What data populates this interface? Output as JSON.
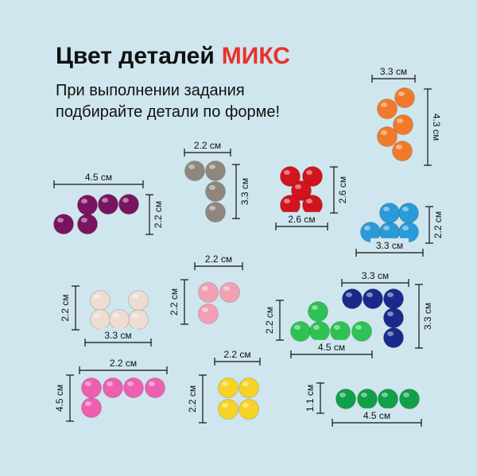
{
  "header": {
    "title": "Цвет деталей",
    "title_highlight": "МИКС",
    "subtitle": [
      "При выполнении задания",
      "подбирайте детали по форме!"
    ]
  },
  "pieces": [
    {
      "color": "#f07a2a",
      "dimensions": [
        "3.3 см",
        "4.3 см"
      ]
    },
    {
      "color": "#8f877e",
      "dimensions": [
        "2.2 см",
        "3.3 см"
      ]
    },
    {
      "color": "#7a1460",
      "dimensions": [
        "4.5 см",
        "2.2 см"
      ]
    },
    {
      "color": "#d2141e",
      "dimensions": [
        "2.6 см",
        "2.6 см"
      ]
    },
    {
      "color": "#2a9ad8",
      "dimensions": [
        "2.2 см",
        "3.3 см"
      ]
    },
    {
      "color": "#eedcd2",
      "dimensions": [
        "2.2 см",
        "3.3 см"
      ]
    },
    {
      "color": "#f3a0b4",
      "dimensions": [
        "2.2 см",
        "2.2 см"
      ]
    },
    {
      "color": "#2ec254",
      "dimensions": [
        "2.2 см",
        "4.5 см"
      ]
    },
    {
      "color": "#1a2a8c",
      "dimensions": [
        "3.3 см",
        "3.3 см"
      ]
    },
    {
      "color": "#ee5fb0",
      "dimensions": [
        "4.5 см",
        "2.2 см"
      ]
    },
    {
      "color": "#f6d324",
      "dimensions": [
        "2.2 см",
        "2.2 см"
      ]
    },
    {
      "color": "#10a04a",
      "dimensions": [
        "1.1 см",
        "4.5 см"
      ]
    }
  ]
}
